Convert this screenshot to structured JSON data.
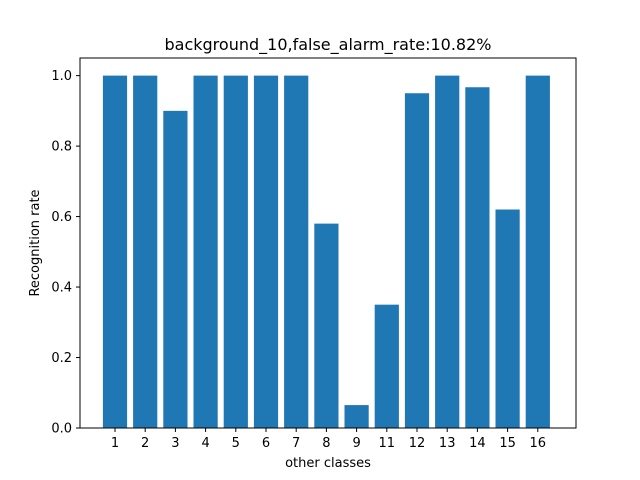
{
  "chart_data": {
    "type": "bar",
    "title": "background_10,false_alarm_rate:10.82%",
    "xlabel": "other classes",
    "ylabel": "Recognition rate",
    "categories": [
      "1",
      "2",
      "3",
      "4",
      "5",
      "6",
      "7",
      "8",
      "9",
      "11",
      "12",
      "13",
      "14",
      "15",
      "16"
    ],
    "values": [
      1.0,
      1.0,
      0.9,
      1.0,
      1.0,
      1.0,
      1.0,
      0.58,
      0.065,
      0.35,
      0.95,
      1.0,
      0.967,
      0.62,
      1.0
    ],
    "ylim": [
      0,
      1.05
    ],
    "yticks": [
      "0.0",
      "0.2",
      "0.4",
      "0.6",
      "0.8",
      "1.0"
    ],
    "bar_color": "#1f77b4",
    "grid": false,
    "legend": "none"
  }
}
